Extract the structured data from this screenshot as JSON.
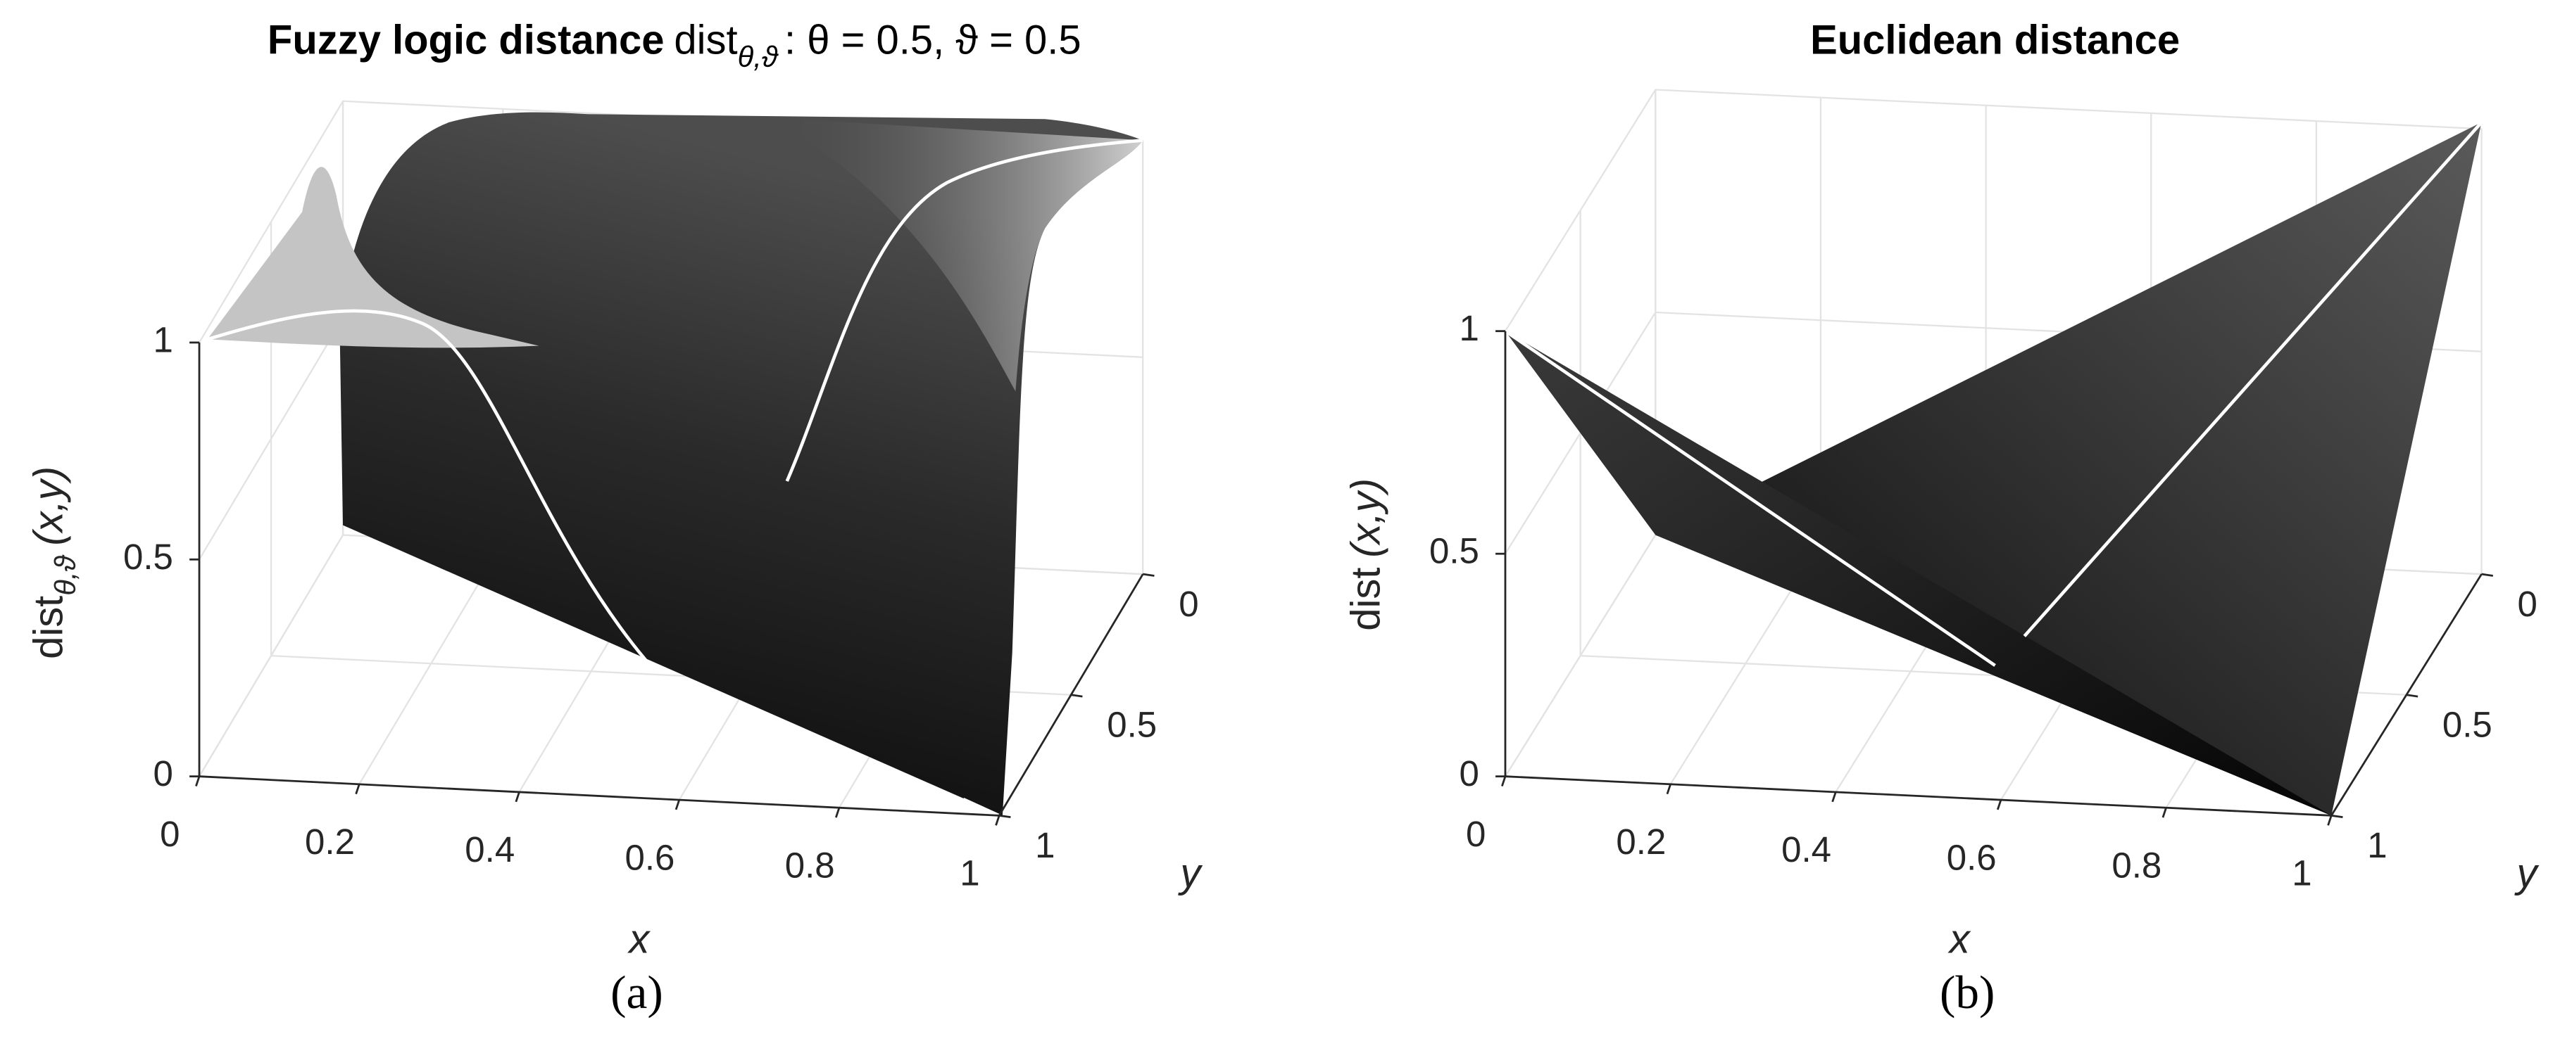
{
  "chart_data": [
    {
      "type": "surface",
      "title": "Fuzzy logic distance",
      "title_formula": "dist",
      "title_subscript": "θ,ϑ",
      "title_suffix": ": θ = 0.5, ϑ = 0.5",
      "xlabel": "x",
      "ylabel": "y",
      "zlabel": "dist",
      "zlabel_subscript": "θ,ϑ",
      "zlabel_suffix": "(x,y)",
      "panel_label": "(a)",
      "xlim": [
        0,
        1
      ],
      "xticks": [
        0,
        0.2,
        0.4,
        0.6,
        0.8,
        1
      ],
      "ylim": [
        0,
        1
      ],
      "yticks": [
        0,
        0.5,
        1
      ],
      "zlim": [
        0,
        1
      ],
      "zticks": [
        0,
        0.5,
        1
      ],
      "grid": true
    },
    {
      "type": "surface",
      "title": "Euclidean distance",
      "xlabel": "x",
      "ylabel": "y",
      "zlabel": "dist",
      "zlabel_suffix": "(x,y)",
      "panel_label": "(b)",
      "xlim": [
        0,
        1
      ],
      "xticks": [
        0,
        0.2,
        0.4,
        0.6,
        0.8,
        1
      ],
      "ylim": [
        0,
        1
      ],
      "yticks": [
        0,
        0.5,
        1
      ],
      "zlim": [
        0,
        1
      ],
      "zticks": [
        0,
        0.5,
        1
      ],
      "grid": true
    }
  ]
}
